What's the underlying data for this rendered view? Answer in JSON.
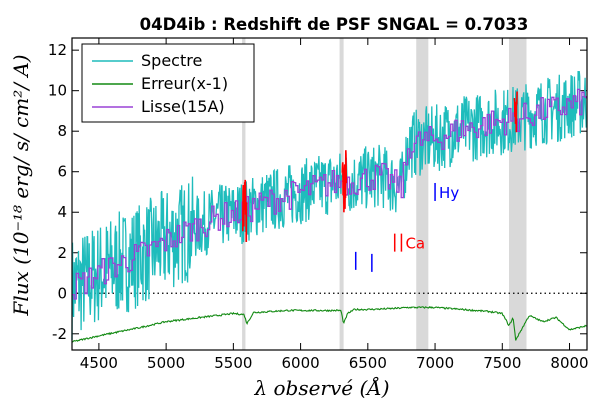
{
  "chart_data": {
    "type": "line",
    "title": "04D4ib : Redshift de PSF SNGAL = 0.7033",
    "xlabel": "λ observé (Å)",
    "ylabel": "Flux (10⁻¹⁸ erg/ s/ cm²/ A)",
    "xlim": [
      4300,
      8130
    ],
    "ylim": [
      -2.8,
      12.6
    ],
    "xticks": [
      4500,
      5000,
      5500,
      6000,
      6500,
      7000,
      7500,
      8000
    ],
    "yticks": [
      -2,
      0,
      2,
      4,
      6,
      8,
      10,
      12
    ],
    "grid": false,
    "legend_position": "top-left",
    "zero_line": {
      "y": 0,
      "style": "dotted"
    },
    "series": [
      {
        "name": "Spectre",
        "color": "#1fbcbc",
        "style": "noisy",
        "x": [
          4300,
          4400,
          4500,
          4600,
          4700,
          4800,
          4900,
          5000,
          5100,
          5200,
          5300,
          5400,
          5500,
          5600,
          5700,
          5800,
          5900,
          6000,
          6100,
          6200,
          6300,
          6400,
          6500,
          6600,
          6700,
          6750,
          6800,
          6900,
          7000,
          7100,
          7200,
          7300,
          7400,
          7500,
          7600,
          7700,
          7800,
          7900,
          8000,
          8130
        ],
        "y": [
          0.3,
          0.6,
          1.0,
          1.3,
          1.6,
          1.9,
          2.2,
          2.6,
          2.9,
          3.2,
          3.5,
          3.8,
          3.9,
          4.1,
          4.4,
          4.6,
          4.8,
          5.0,
          5.2,
          5.4,
          5.5,
          5.5,
          5.7,
          5.8,
          5.4,
          5.2,
          7.3,
          7.5,
          7.6,
          7.9,
          8.1,
          8.2,
          8.4,
          8.5,
          8.6,
          8.8,
          9.0,
          9.1,
          9.3,
          9.5
        ]
      },
      {
        "name": "Erreur(x-1)",
        "color": "#138a13",
        "style": "smooth",
        "x": [
          4300,
          4500,
          4800,
          5000,
          5500,
          5580,
          5600,
          5650,
          5900,
          6000,
          6300,
          6320,
          6350,
          6400,
          6500,
          6700,
          6800,
          6900,
          7000,
          7200,
          7400,
          7500,
          7550,
          7580,
          7600,
          7700,
          7800,
          7900,
          8000,
          8130
        ],
        "y": [
          -2.4,
          -2.1,
          -1.7,
          -1.4,
          -1.0,
          -1.05,
          -1.5,
          -0.95,
          -0.85,
          -0.85,
          -0.85,
          -1.5,
          -1.0,
          -0.8,
          -0.8,
          -0.75,
          -0.7,
          -0.7,
          -0.7,
          -0.8,
          -0.9,
          -1.0,
          -1.6,
          -1.2,
          -2.3,
          -1.1,
          -1.4,
          -1.2,
          -1.8,
          -1.6
        ]
      },
      {
        "name": "Lisse(15A)",
        "color": "#9a42d6",
        "style": "step",
        "x": [
          4300,
          4400,
          4500,
          4600,
          4700,
          4800,
          4900,
          5000,
          5100,
          5200,
          5300,
          5400,
          5500,
          5600,
          5700,
          5800,
          5900,
          6000,
          6100,
          6200,
          6300,
          6400,
          6500,
          6600,
          6700,
          6750,
          6800,
          6900,
          7000,
          7100,
          7200,
          7300,
          7400,
          7500,
          7600,
          7700,
          7800,
          7900,
          8000,
          8130
        ],
        "y": [
          0.3,
          0.6,
          1.0,
          1.3,
          1.6,
          1.9,
          2.2,
          2.6,
          2.9,
          3.2,
          3.5,
          3.8,
          3.9,
          4.1,
          4.4,
          4.6,
          4.8,
          5.0,
          5.2,
          5.4,
          5.5,
          5.5,
          5.7,
          5.8,
          5.4,
          5.2,
          7.3,
          7.5,
          7.6,
          7.9,
          8.1,
          8.2,
          8.4,
          8.5,
          8.6,
          8.8,
          9.0,
          9.1,
          9.3,
          9.5
        ]
      }
    ],
    "shaded_bands": [
      {
        "x0": 5565,
        "x1": 5590
      },
      {
        "x0": 6290,
        "x1": 6320
      },
      {
        "x0": 6860,
        "x1": 6950
      },
      {
        "x0": 7550,
        "x1": 7680
      }
    ],
    "red_segments": [
      {
        "x0": 5570,
        "x1": 5600
      },
      {
        "x0": 6310,
        "x1": 6340
      },
      {
        "x0": 7590,
        "x1": 7610
      }
    ],
    "markers": [
      {
        "x": 6410,
        "y": 1.6,
        "color": "#0000ff",
        "label": ""
      },
      {
        "x": 6530,
        "y": 1.5,
        "color": "#0000ff",
        "label": ""
      },
      {
        "x": 6700,
        "y": 2.5,
        "color": "#ff0000",
        "label": ""
      },
      {
        "x": 6750,
        "y": 2.5,
        "color": "#ff0000",
        "label": "Ca"
      },
      {
        "x": 7000,
        "y": 5.0,
        "color": "#0000ff",
        "label": "Hy"
      }
    ]
  }
}
